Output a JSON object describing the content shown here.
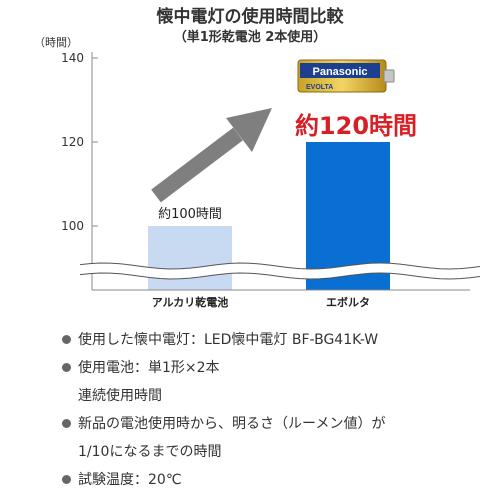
{
  "title": "懐中電灯の使用時間比較",
  "subtitle": "（単1形乾電池 2本使用）",
  "chart_data": {
    "type": "bar",
    "ylabel": "（時間）",
    "ylim": [
      90,
      140
    ],
    "yticks": [
      100,
      120,
      140
    ],
    "categories": [
      "アルカリ乾電池",
      "エボルタ"
    ],
    "values": [
      100,
      120
    ],
    "data_labels": [
      "約100時間",
      "約120時間"
    ],
    "axis_break": true,
    "grid": false,
    "colors": [
      "#c8d9f2",
      "#0a6fd3"
    ]
  },
  "battery": {
    "brand": "Panasonic",
    "model": "EVOLTA"
  },
  "colors": {
    "highlight_label": "#d71f26",
    "arrow": "#7f7f7f",
    "axis": "#888888"
  },
  "notes": [
    "使用した懐中電灯：LED懐中電灯 BF-BG41K-W",
    "使用電池：単1形×2本",
    "連続使用時間",
    "新品の電池使用時から、明るさ（ルーメン値）が",
    "1/10になるまでの時間",
    "試験温度：20℃"
  ]
}
